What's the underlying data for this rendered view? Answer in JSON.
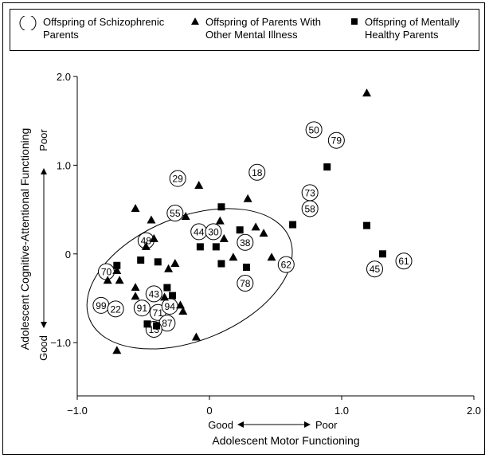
{
  "legend": {
    "schizophrenic": {
      "line1": "Offspring of Schizophrenic",
      "line2": "Parents"
    },
    "other_illness": {
      "line1": "Offspring of Parents With",
      "line2": "Other Mental Illness"
    },
    "healthy": {
      "line1": "Offspring of Mentally",
      "line2": "Healthy Parents"
    }
  },
  "chart_data": {
    "type": "scatter",
    "xlabel": "Adolescent Motor Functioning",
    "ylabel": "Adolescent Cognitive-Attentional Functioning",
    "x_direction": {
      "low": "Good",
      "high": "Poor"
    },
    "y_direction": {
      "low": "Good",
      "high": "Poor"
    },
    "xlim": [
      -1.0,
      2.0
    ],
    "ylim": [
      -1.6,
      2.0
    ],
    "x_ticks": [
      {
        "v": -1.0,
        "label": "−1.0"
      },
      {
        "v": 0,
        "label": "0"
      },
      {
        "v": 1.0,
        "label": "1.0"
      },
      {
        "v": 2.0,
        "label": "2.0"
      }
    ],
    "y_ticks": [
      {
        "v": 2.0,
        "label": "2.0"
      },
      {
        "v": 1.0,
        "label": "1.0"
      },
      {
        "v": 0,
        "label": "0"
      },
      {
        "v": -1.0,
        "label": "−1.0"
      }
    ],
    "grid": false,
    "series": [
      {
        "name": "Offspring of Schizophrenic Parents",
        "marker": "circle-label",
        "points": [
          {
            "x": 0.79,
            "y": 1.4,
            "label": "50"
          },
          {
            "x": 0.96,
            "y": 1.28,
            "label": "79"
          },
          {
            "x": -0.24,
            "y": 0.85,
            "label": "29"
          },
          {
            "x": 0.36,
            "y": 0.92,
            "label": "18"
          },
          {
            "x": 0.76,
            "y": 0.69,
            "label": "73"
          },
          {
            "x": 0.76,
            "y": 0.51,
            "label": "58"
          },
          {
            "x": -0.26,
            "y": 0.46,
            "label": "55"
          },
          {
            "x": -0.08,
            "y": 0.25,
            "label": "44"
          },
          {
            "x": 0.03,
            "y": 0.25,
            "label": "30"
          },
          {
            "x": -0.48,
            "y": 0.15,
            "label": "48"
          },
          {
            "x": 0.27,
            "y": 0.13,
            "label": "38"
          },
          {
            "x": 0.58,
            "y": -0.12,
            "label": "62"
          },
          {
            "x": -0.78,
            "y": -0.2,
            "label": "70"
          },
          {
            "x": 0.27,
            "y": -0.33,
            "label": "78"
          },
          {
            "x": -0.42,
            "y": -0.45,
            "label": "43"
          },
          {
            "x": -0.82,
            "y": -0.58,
            "label": "99"
          },
          {
            "x": -0.71,
            "y": -0.62,
            "label": "22"
          },
          {
            "x": -0.51,
            "y": -0.61,
            "label": "91"
          },
          {
            "x": -0.39,
            "y": -0.66,
            "label": "71"
          },
          {
            "x": -0.3,
            "y": -0.59,
            "label": "94"
          },
          {
            "x": -0.32,
            "y": -0.78,
            "label": "87"
          },
          {
            "x": -0.42,
            "y": -0.85,
            "label": "13"
          },
          {
            "x": 1.25,
            "y": -0.17,
            "label": "45"
          },
          {
            "x": 1.47,
            "y": -0.08,
            "label": "61"
          }
        ]
      },
      {
        "name": "Offspring of Parents With Other Mental Illness",
        "marker": "triangle",
        "points": [
          {
            "x": 1.19,
            "y": 1.81
          },
          {
            "x": -0.08,
            "y": 0.77
          },
          {
            "x": 0.29,
            "y": 0.62
          },
          {
            "x": -0.56,
            "y": 0.51
          },
          {
            "x": -0.18,
            "y": 0.42
          },
          {
            "x": 0.08,
            "y": 0.37
          },
          {
            "x": -0.44,
            "y": 0.38
          },
          {
            "x": 0.35,
            "y": 0.3
          },
          {
            "x": 0.11,
            "y": 0.17
          },
          {
            "x": -0.48,
            "y": 0.08
          },
          {
            "x": 0.41,
            "y": 0.23
          },
          {
            "x": -0.42,
            "y": 0.17
          },
          {
            "x": 0.18,
            "y": -0.04
          },
          {
            "x": 0.47,
            "y": -0.04
          },
          {
            "x": -0.31,
            "y": -0.17
          },
          {
            "x": -0.26,
            "y": -0.11
          },
          {
            "x": -0.7,
            "y": -0.19
          },
          {
            "x": -0.77,
            "y": -0.3
          },
          {
            "x": -0.68,
            "y": -0.3
          },
          {
            "x": -0.56,
            "y": -0.38
          },
          {
            "x": -0.56,
            "y": -0.48
          },
          {
            "x": -0.34,
            "y": -0.49
          },
          {
            "x": -0.22,
            "y": -0.58
          },
          {
            "x": -0.2,
            "y": -0.65
          },
          {
            "x": -0.7,
            "y": -1.09
          },
          {
            "x": -0.1,
            "y": -0.94
          }
        ]
      },
      {
        "name": "Offspring of Mentally Healthy Parents",
        "marker": "square",
        "points": [
          {
            "x": 0.89,
            "y": 0.98
          },
          {
            "x": 0.09,
            "y": 0.53
          },
          {
            "x": 0.63,
            "y": 0.33
          },
          {
            "x": 1.19,
            "y": 0.32
          },
          {
            "x": 0.23,
            "y": 0.27
          },
          {
            "x": -0.07,
            "y": 0.08
          },
          {
            "x": 0.05,
            "y": 0.08
          },
          {
            "x": -0.52,
            "y": -0.07
          },
          {
            "x": -0.7,
            "y": -0.13
          },
          {
            "x": 0.09,
            "y": -0.11
          },
          {
            "x": 0.28,
            "y": -0.15
          },
          {
            "x": -0.39,
            "y": -0.09
          },
          {
            "x": 1.31,
            "y": 0.0
          },
          {
            "x": -0.32,
            "y": -0.38
          },
          {
            "x": -0.28,
            "y": -0.47
          },
          {
            "x": -0.47,
            "y": -0.79
          },
          {
            "x": -0.4,
            "y": -0.81
          }
        ]
      }
    ],
    "annotation_ellipse": {
      "cx": -0.15,
      "cy": -0.28,
      "rx": 0.68,
      "ry": 0.85,
      "rotate_deg": -22
    }
  }
}
